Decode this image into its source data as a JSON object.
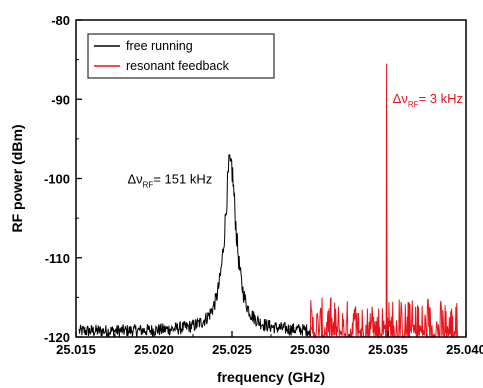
{
  "chart_data": {
    "type": "line",
    "xlabel": "frequency (GHz)",
    "ylabel": "RF power (dBm)",
    "xlim": [
      25.015,
      25.04
    ],
    "ylim": [
      -120,
      -80
    ],
    "xticks": [
      "25.015",
      "25.020",
      "25.025",
      "25.030",
      "25.035",
      "25.040"
    ],
    "yticks": [
      "-80",
      "-90",
      "-100",
      "-110",
      "-120"
    ],
    "grid": false,
    "legend_position": "top-left",
    "series": [
      {
        "name": "free running",
        "color": "#000000",
        "noise_floor": -119.3,
        "x_range": [
          25.0152,
          25.0301
        ],
        "peak": {
          "x": 25.0249,
          "y": -97.8
        }
      },
      {
        "name": "resonant feedback",
        "color": "#e8141c",
        "noise_floor": -119.0,
        "x_range": [
          25.0299,
          25.0395
        ],
        "peak": {
          "x": 25.0349,
          "y": -85.5
        }
      }
    ],
    "annotations": [
      {
        "prefix": "Δν",
        "subscript": "RF",
        "suffix": "= 151 kHz",
        "color": "#000000",
        "x": 25.0183,
        "y": -100.6
      },
      {
        "prefix": "Δν",
        "subscript": "RF",
        "suffix": "= 3 kHz",
        "color": "#e8141c",
        "x": 25.0353,
        "y": -90.5
      }
    ]
  }
}
